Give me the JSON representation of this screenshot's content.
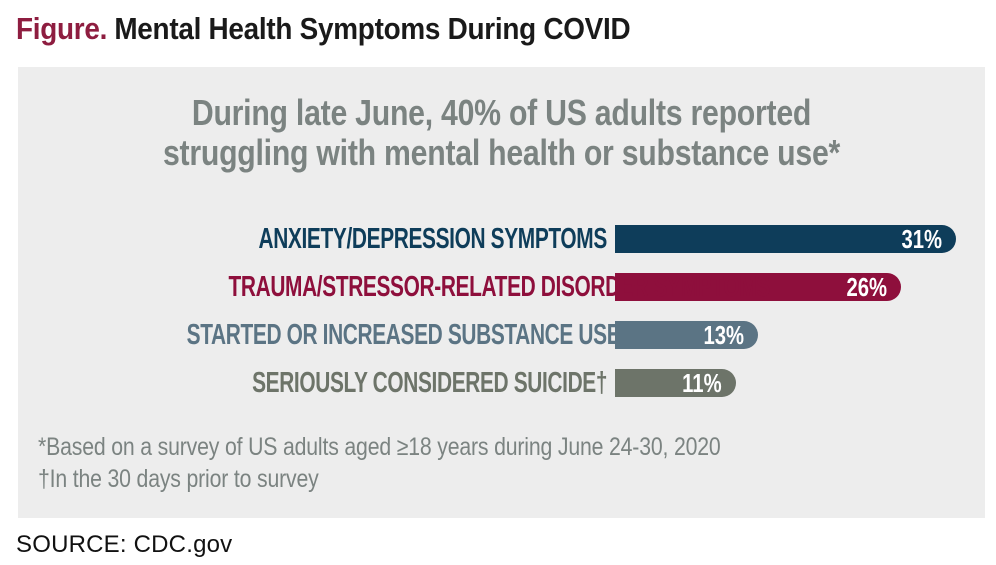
{
  "figure": {
    "label": "Figure.",
    "title": "Mental Health Symptoms During COVID"
  },
  "chart_data": {
    "type": "bar",
    "orientation": "horizontal",
    "title": "During late June, 40% of US adults reported struggling with mental health or substance use*",
    "title_lines": {
      "line1": "During late June, 40% of US adults reported",
      "line2": "struggling with mental health or substance use*"
    },
    "categories": [
      "ANXIETY/DEPRESSION SYMPTOMS",
      "TRAUMA/STRESSOR-RELATED DISORDER SYMPTOMS",
      "STARTED OR INCREASED SUBSTANCE USE",
      "SERIOUSLY CONSIDERED SUICIDE†"
    ],
    "values": [
      31,
      26,
      13,
      11
    ],
    "value_labels": [
      "31%",
      "26%",
      "13%",
      "11%"
    ],
    "bar_colors": [
      "#0e3d5a",
      "#8e0f3c",
      "#5b7484",
      "#6d7469"
    ],
    "unit": "%",
    "xlim": [
      0,
      33
    ],
    "grid": false,
    "legend": "none",
    "value_label_position": "inside-right"
  },
  "footnotes": {
    "asterisk": "*Based on a survey of US adults aged ≥18 years during June 24-30, 2020",
    "dagger": "†In the 30 days prior to survey"
  },
  "source": "SOURCE: CDC.gov",
  "colors": {
    "page_bg": "#ffffff",
    "panel_bg": "#ededed",
    "figure_label": "#8e1d40",
    "title_text": "#1a1a1a",
    "subtitle_text": "#7b8381",
    "footnote_text": "#7b8381",
    "value_text": "#ffffff"
  }
}
